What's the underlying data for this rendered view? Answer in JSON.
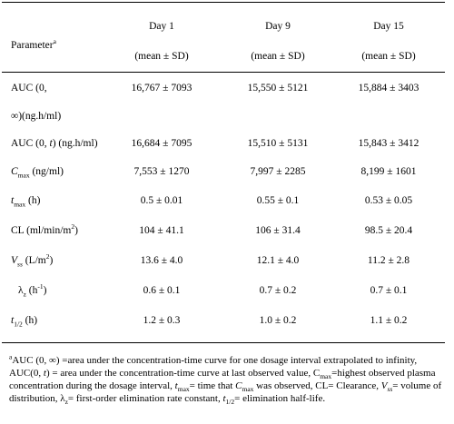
{
  "header": {
    "parameter": "Parameter",
    "parameter_sup": "a",
    "days": [
      "Day 1",
      "Day 9",
      "Day 15"
    ],
    "stat": "(mean ± SD)"
  },
  "rows": [
    {
      "param": "AUC (0,",
      "param_line2": "∞)(ng.h/ml)",
      "values": [
        "16,767 ± 7093",
        "15,550 ± 5121",
        "15,884 ± 3403"
      ]
    },
    {
      "param": "AUC (0, t) (ng.h/ml)",
      "values": [
        "16,684 ± 7095",
        "15,510 ± 5131",
        "15,843 ± 3412"
      ]
    },
    {
      "param": "Cmax (ng/ml)",
      "values": [
        "7,553 ± 1270",
        "7,997 ± 2285",
        "8,199 ± 1601"
      ]
    },
    {
      "param": "tmax (h)",
      "values": [
        "0.5 ± 0.01",
        "0.55 ± 0.1",
        "0.53 ± 0.05"
      ]
    },
    {
      "param": "CL (ml/min/m2)",
      "values": [
        "104 ± 41.1",
        "106 ± 31.4",
        "98.5 ± 20.4"
      ]
    },
    {
      "param": "Vss (L/m2)",
      "values": [
        "13.6 ± 4.0",
        "12.1 ± 4.0",
        "11.2 ± 2.8"
      ]
    },
    {
      "param": "λz (h-1)",
      "values": [
        "0.6 ± 0.1",
        "0.7 ± 0.2",
        "0.7 ± 0.1"
      ]
    },
    {
      "param": "t (h)",
      "values": [
        "1.2 ± 0.3",
        "1.0 ± 0.2",
        "1.1 ± 0.2"
      ]
    }
  ],
  "footnote": "aAUC (0, ∞) =area under the concentration-time curve for one dosage interval extrapolated to infinity, AUC(0, t) = area under the concentration-time curve at last observed value, Cmax=highest observed plasma concentration during the dosage interval, tmax= time that Cmax was observed, CL= Clearance, Vss= volume of distribution, λz= first-order elimination rate constant, t1/2= elimination half-life."
}
